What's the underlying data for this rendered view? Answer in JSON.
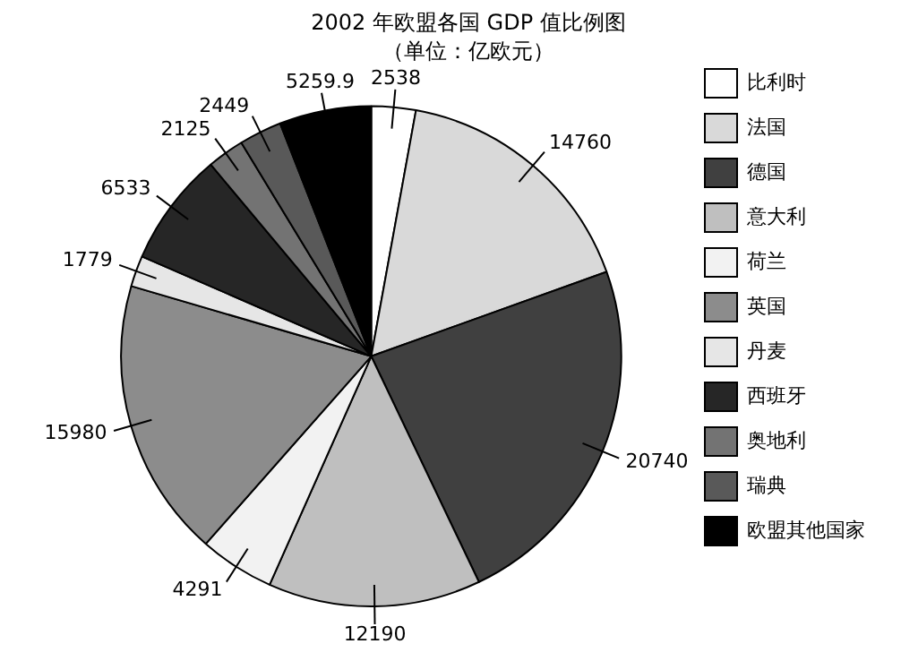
{
  "chart_data": {
    "type": "pie",
    "title": "2002 年欧盟各国 GDP 值比例图",
    "subtitle": "（单位：亿欧元）",
    "categories": [
      "比利时",
      "法国",
      "德国",
      "意大利",
      "荷兰",
      "英国",
      "丹麦",
      "西班牙",
      "奥地利",
      "瑞典",
      "欧盟其他国家"
    ],
    "values": [
      2538,
      14760,
      20740,
      12190,
      4291,
      15980,
      1779,
      6533,
      2125,
      2449,
      5259.9
    ],
    "colors": [
      "#ffffff",
      "#d9d9d9",
      "#404040",
      "#bfbfbf",
      "#f2f2f2",
      "#8c8c8c",
      "#e6e6e6",
      "#262626",
      "#737373",
      "#595959",
      "#000000"
    ],
    "data_labels": true,
    "legend": "right"
  }
}
